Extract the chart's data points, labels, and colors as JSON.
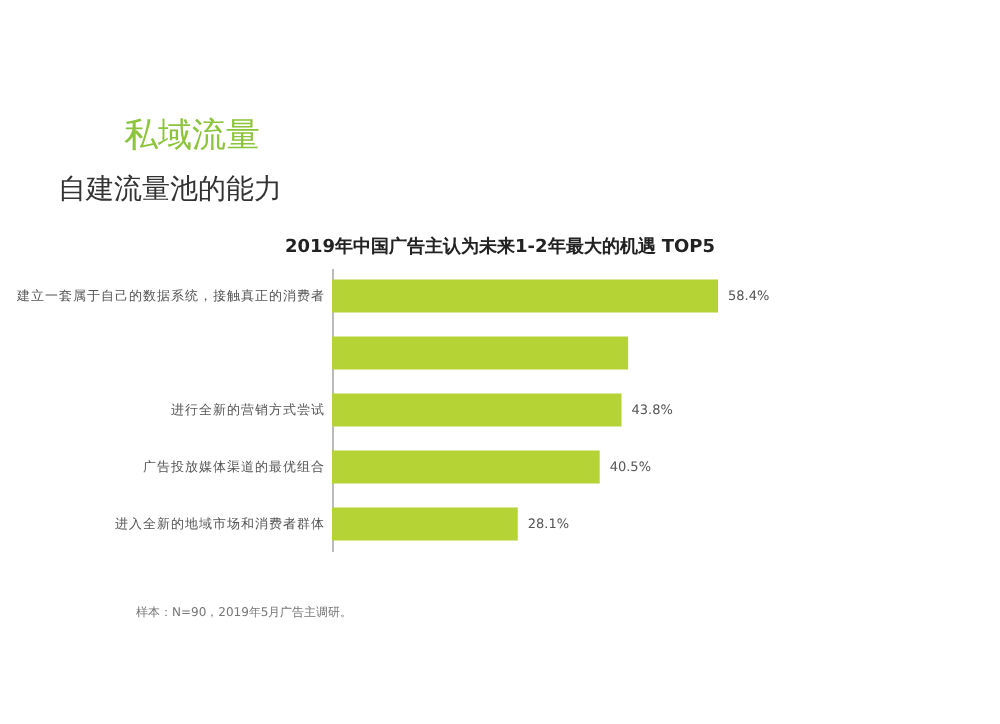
{
  "chart_data": {
    "type": "bar",
    "orientation": "horizontal",
    "title": "2019年中国广告主认为未来1-2年最大的机遇 TOP5",
    "annotations": [
      "私域流量",
      "自建流量池的能力",
      "样本：N=90，2019年5月广告主调研。"
    ],
    "categories": [
      "建立一套属于自己的数据系统，接触真正的消费者",
      null,
      "进行全新的营销方式尝试",
      "广告投放媒体渠道的最优组合",
      "进入全新的地域市场和消费者群体"
    ],
    "values": [
      58.4,
      44.8,
      43.8,
      40.5,
      28.1
    ],
    "value_labels": [
      "58.4%",
      null,
      "43.8%",
      "40.5%",
      "28.1%"
    ],
    "color": "#b5d334"
  }
}
